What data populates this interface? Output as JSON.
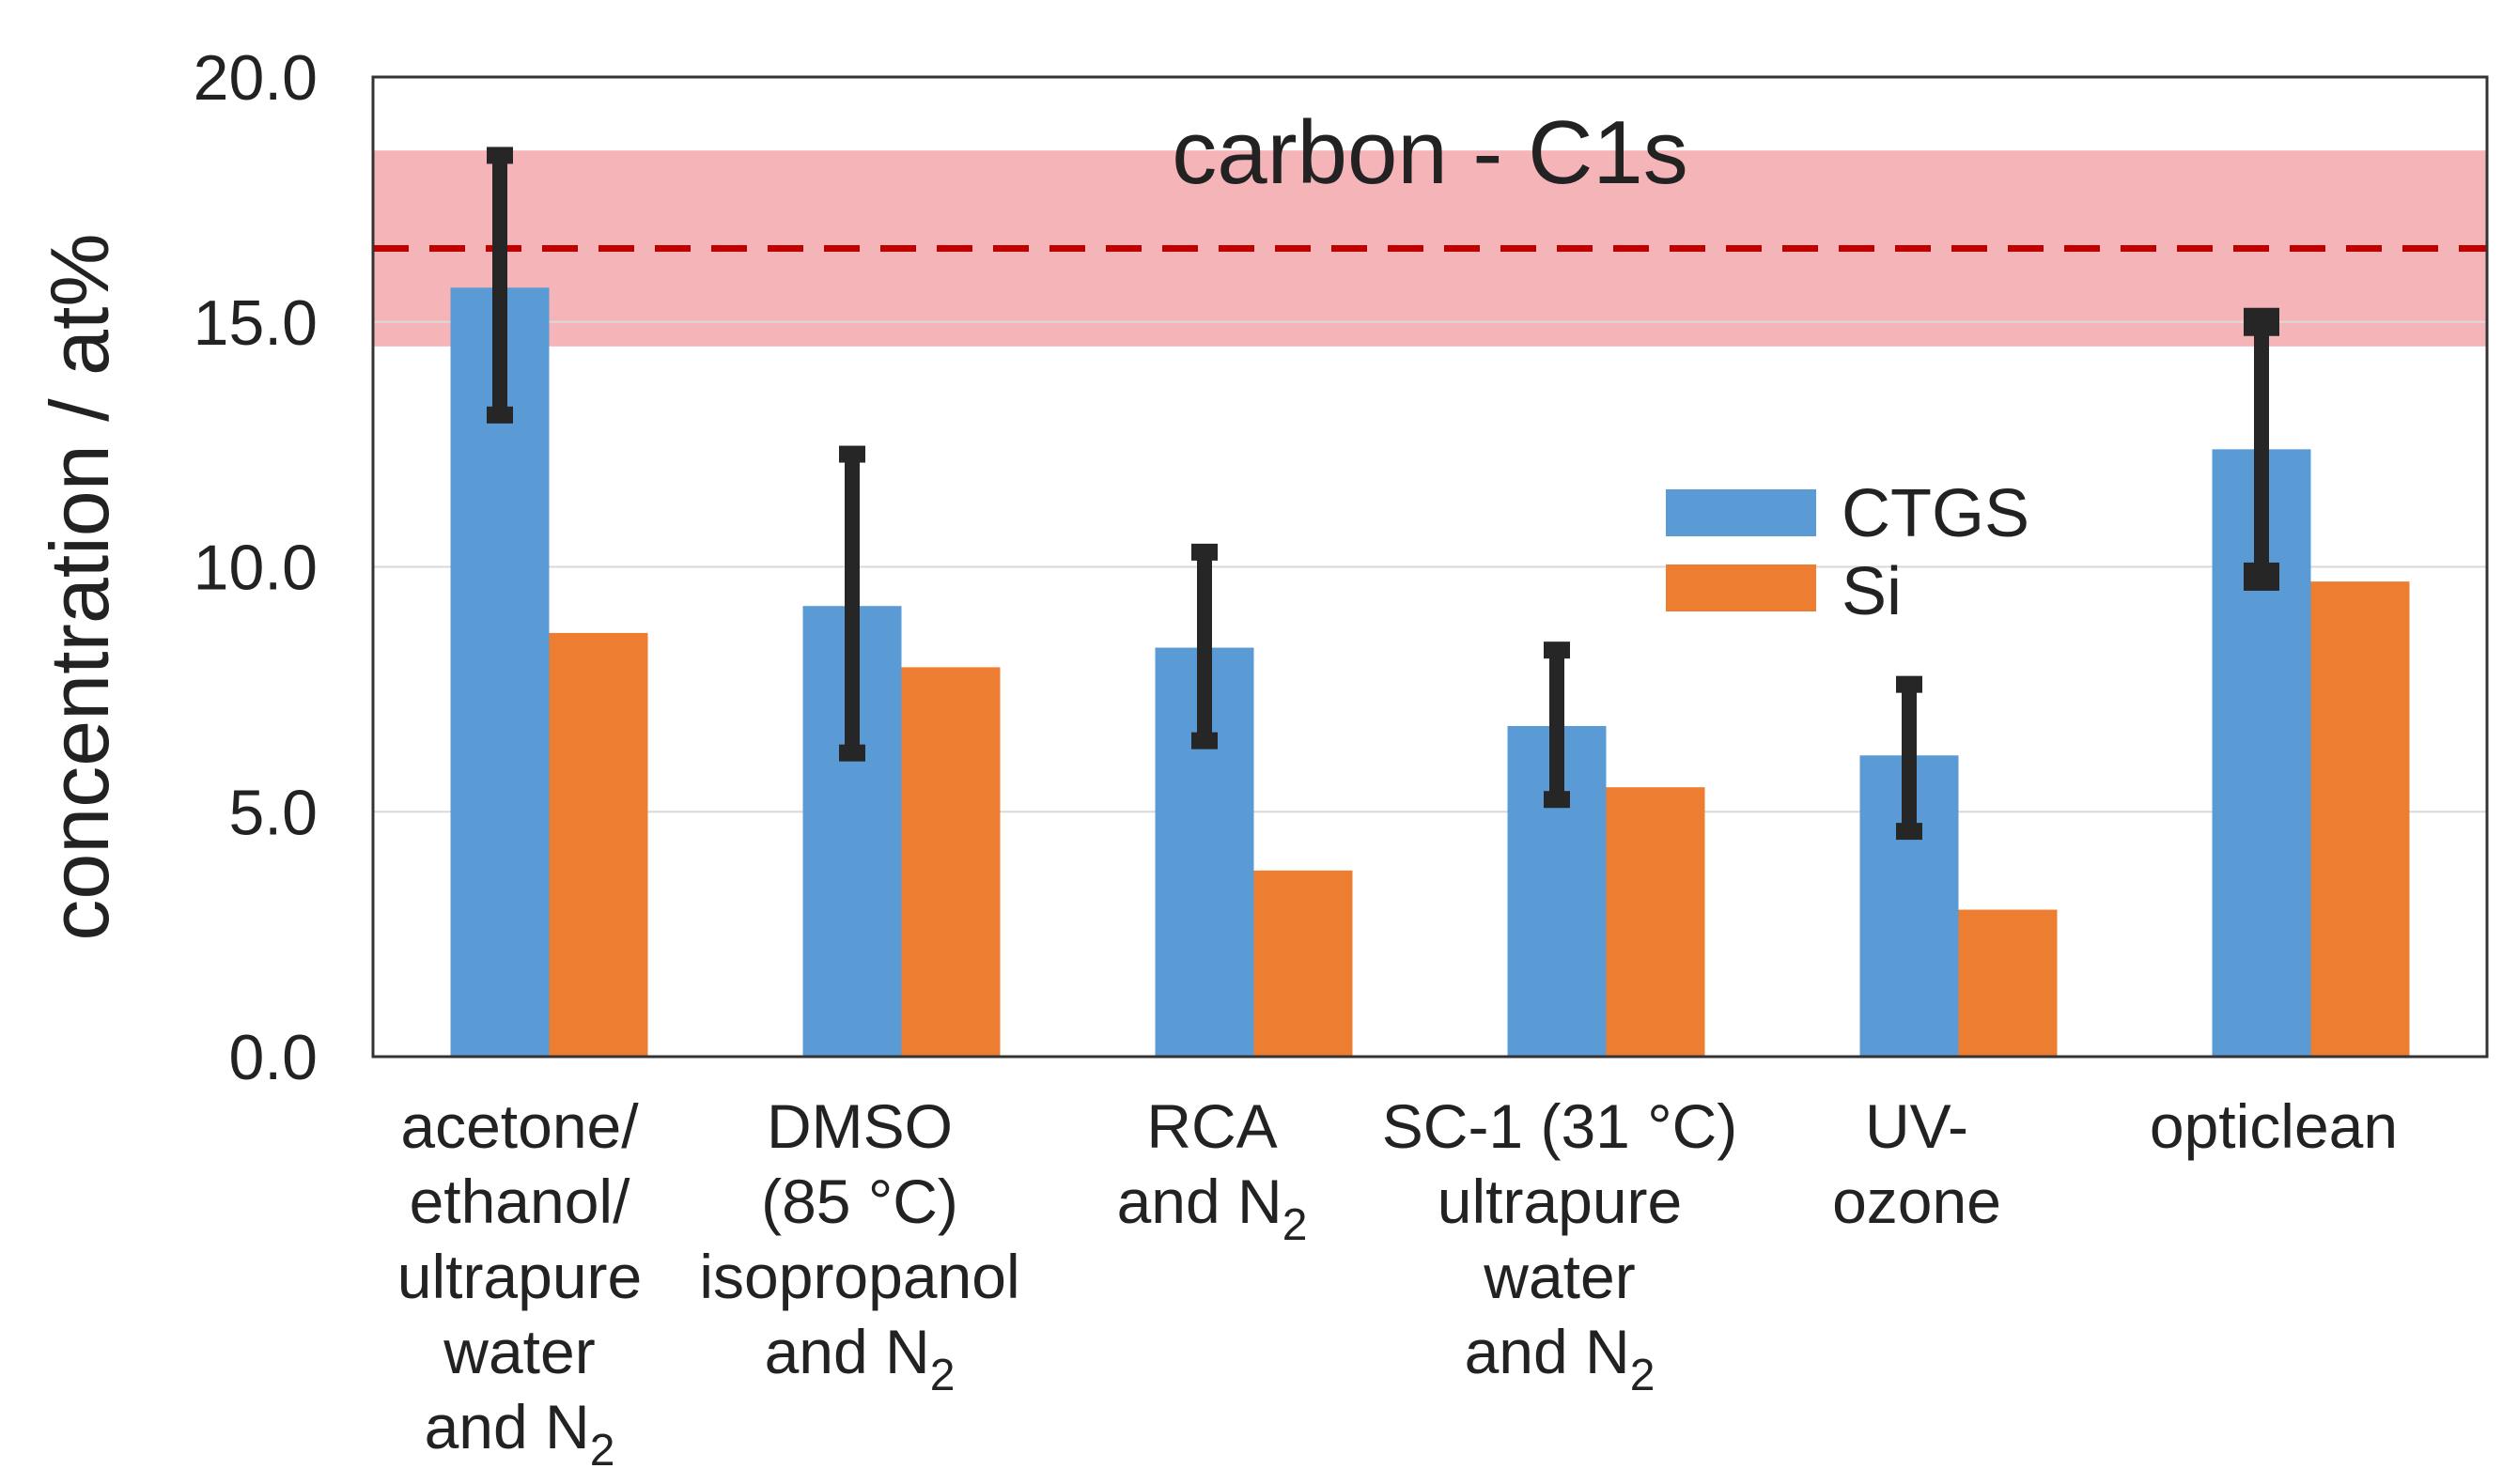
{
  "chart_data": {
    "type": "bar",
    "title": "carbon - C1s",
    "xlabel": "",
    "ylabel": "concentration / at%",
    "ylim": [
      0,
      20
    ],
    "yticks": [
      "0.0",
      "5.0",
      "10.0",
      "15.0",
      "20.0"
    ],
    "grid": true,
    "legend_position": "center-right",
    "categories": [
      {
        "lines": [
          "acetone/",
          "ethanol/",
          "ultrapure",
          "water",
          "and N|2"
        ]
      },
      {
        "lines": [
          "DMSO",
          "(85 °C)",
          "isopropanol",
          "and N|2"
        ]
      },
      {
        "lines": [
          "RCA",
          "and N|2"
        ]
      },
      {
        "lines": [
          "SC-1 (31 °C)",
          "ultrapure",
          "water",
          "and N|2"
        ]
      },
      {
        "lines": [
          "UV-",
          "ozone"
        ]
      },
      {
        "lines": [
          "opticlean"
        ]
      }
    ],
    "series": [
      {
        "name": "CTGS",
        "color": "#5b9bd5",
        "values": [
          15.7,
          9.2,
          8.35,
          6.75,
          6.15,
          12.4
        ],
        "error_low": [
          13.1,
          6.2,
          6.45,
          5.25,
          4.6,
          9.8
        ],
        "error_high": [
          18.4,
          12.3,
          10.3,
          8.3,
          7.6,
          15.0
        ]
      },
      {
        "name": "Si",
        "color": "#ed7d31",
        "values": [
          8.65,
          7.95,
          3.8,
          5.5,
          3.0,
          9.7
        ]
      }
    ],
    "reference": {
      "value": 16.5,
      "band": [
        14.5,
        18.5
      ],
      "line_color": "#c00000",
      "band_color": "#f4b4b8"
    },
    "error_bar_color": "#262626"
  }
}
